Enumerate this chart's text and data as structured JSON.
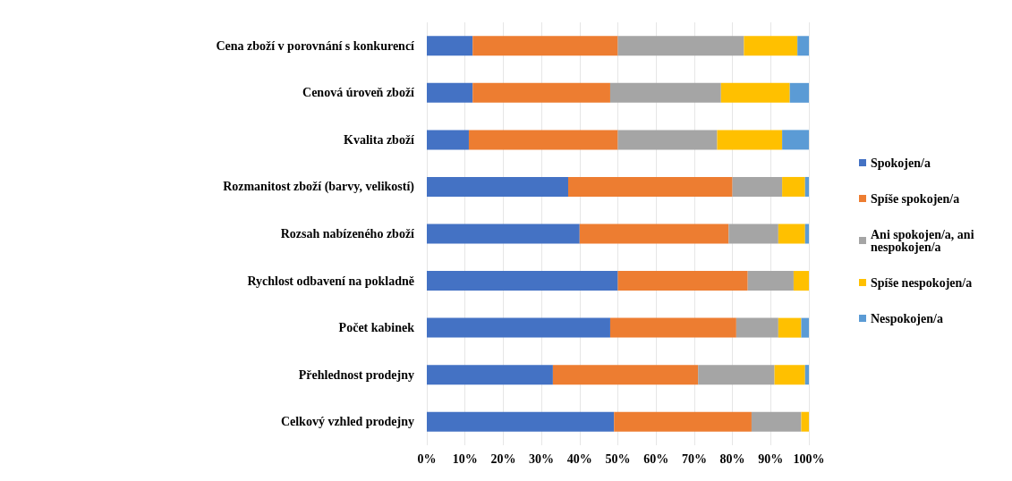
{
  "chart_data": {
    "type": "bar",
    "orientation": "horizontal",
    "stacked": true,
    "categories": [
      "Cena zboží v porovnání s konkurencí",
      "Cenová úroveň zboží",
      "Kvalita zboží",
      "Rozmanitost zboží (barvy, velikostí)",
      "Rozsah nabízeného zboží",
      "Rychlost odbavení na pokladně",
      "Počet kabinek",
      "Přehlednost prodejny",
      "Celkový vzhled prodejny"
    ],
    "series": [
      {
        "name": "Spokojen/a",
        "color": "#4472c4",
        "values": [
          12,
          12,
          11,
          37,
          40,
          50,
          48,
          33,
          49
        ]
      },
      {
        "name": "Spíše spokojen/a",
        "color": "#ed7d31",
        "values": [
          38,
          36,
          39,
          43,
          39,
          34,
          33,
          38,
          36
        ]
      },
      {
        "name": "Ani spokojen/a, ani nespokojen/a",
        "color": "#a5a5a5",
        "values": [
          33,
          29,
          26,
          13,
          13,
          12,
          11,
          20,
          13
        ]
      },
      {
        "name": "Spíše nespokojen/a",
        "color": "#ffc000",
        "values": [
          14,
          18,
          17,
          6,
          7,
          4,
          6,
          8,
          2
        ]
      },
      {
        "name": "Nespokojen/a",
        "color": "#5b9bd5",
        "values": [
          3,
          5,
          7,
          1,
          1,
          0,
          2,
          1,
          0
        ]
      }
    ],
    "xlim": [
      0,
      100
    ],
    "xticks": [
      {
        "value": 0,
        "label": "0%"
      },
      {
        "value": 10,
        "label": "10%"
      },
      {
        "value": 20,
        "label": "20%"
      },
      {
        "value": 30,
        "label": "30%"
      },
      {
        "value": 40,
        "label": "40%"
      },
      {
        "value": 50,
        "label": "50%"
      },
      {
        "value": 60,
        "label": "60%"
      },
      {
        "value": 70,
        "label": "70%"
      },
      {
        "value": 80,
        "label": "80%"
      },
      {
        "value": 90,
        "label": "90%"
      },
      {
        "value": 100,
        "label": "100%"
      }
    ],
    "grid": "x",
    "legend": "right"
  }
}
